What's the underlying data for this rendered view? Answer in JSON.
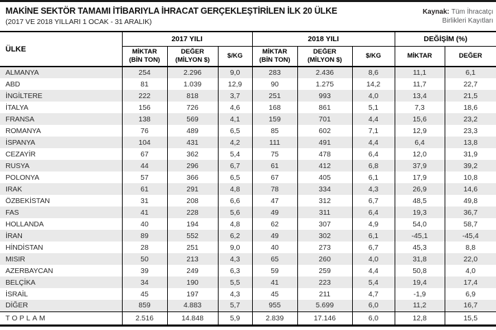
{
  "chart_data": {
    "type": "table",
    "title": "MAKİNE SEKTÖR TAMAMI İTİBARIYLA İHRACAT GERÇEKLEŞTİRİLEN İLK 20 ÜLKE",
    "subtitle": "(2017 VE 2018 YILLARI 1 OCAK - 31 ARALIK)",
    "source_label": "Kaynak:",
    "source_line1": "Tüm İhracatçı",
    "source_line2": "Birlikleri Kayıtları",
    "header": {
      "country_label": "ÜLKE",
      "group_2017": "2017 YILI",
      "group_2018": "2018 YILI",
      "group_change": "DEĞİŞİM (%)",
      "miktar_line1": "MİKTAR",
      "miktar_line2": "(BİN TON)",
      "deger_line1": "DEĞER",
      "deger_line2": "(MİLYON $)",
      "per_kg": "$/KG",
      "change_miktar": "MİKTAR",
      "change_deger": "DEĞER"
    },
    "rows": [
      {
        "country": "ALMANYA",
        "values": [
          "254",
          "2.296",
          "9,0",
          "283",
          "2.436",
          "8,6",
          "11,1",
          "6,1"
        ]
      },
      {
        "country": "ABD",
        "values": [
          "81",
          "1.039",
          "12,9",
          "90",
          "1.275",
          "14,2",
          "11,7",
          "22,7"
        ]
      },
      {
        "country": "İNGİLTERE",
        "values": [
          "222",
          "818",
          "3,7",
          "251",
          "993",
          "4,0",
          "13,4",
          "21,5"
        ]
      },
      {
        "country": "İTALYA",
        "values": [
          "156",
          "726",
          "4,6",
          "168",
          "861",
          "5,1",
          "7,3",
          "18,6"
        ]
      },
      {
        "country": "FRANSA",
        "values": [
          "138",
          "569",
          "4,1",
          "159",
          "701",
          "4,4",
          "15,6",
          "23,2"
        ]
      },
      {
        "country": "ROMANYA",
        "values": [
          "76",
          "489",
          "6,5",
          "85",
          "602",
          "7,1",
          "12,9",
          "23,3"
        ]
      },
      {
        "country": "İSPANYA",
        "values": [
          "104",
          "431",
          "4,2",
          "111",
          "491",
          "4,4",
          "6,4",
          "13,8"
        ]
      },
      {
        "country": "CEZAYİR",
        "values": [
          "67",
          "362",
          "5,4",
          "75",
          "478",
          "6,4",
          "12,0",
          "31,9"
        ]
      },
      {
        "country": "RUSYA",
        "values": [
          "44",
          "296",
          "6,7",
          "61",
          "412",
          "6,8",
          "37,9",
          "39,2"
        ]
      },
      {
        "country": "POLONYA",
        "values": [
          "57",
          "366",
          "6,5",
          "67",
          "405",
          "6,1",
          "17,9",
          "10,8"
        ]
      },
      {
        "country": "IRAK",
        "values": [
          "61",
          "291",
          "4,8",
          "78",
          "334",
          "4,3",
          "26,9",
          "14,6"
        ]
      },
      {
        "country": "ÖZBEKİSTAN",
        "values": [
          "31",
          "208",
          "6,6",
          "47",
          "312",
          "6,7",
          "48,5",
          "49,8"
        ]
      },
      {
        "country": "FAS",
        "values": [
          "41",
          "228",
          "5,6",
          "49",
          "311",
          "6,4",
          "19,3",
          "36,7"
        ]
      },
      {
        "country": "HOLLANDA",
        "values": [
          "40",
          "194",
          "4,8",
          "62",
          "307",
          "4,9",
          "54,0",
          "58,7"
        ]
      },
      {
        "country": "İRAN",
        "values": [
          "89",
          "552",
          "6,2",
          "49",
          "302",
          "6,1",
          "-45,1",
          "-45,4"
        ]
      },
      {
        "country": "HİNDİSTAN",
        "values": [
          "28",
          "251",
          "9,0",
          "40",
          "273",
          "6,7",
          "45,3",
          "8,8"
        ]
      },
      {
        "country": "MISIR",
        "values": [
          "50",
          "213",
          "4,3",
          "65",
          "260",
          "4,0",
          "31,8",
          "22,0"
        ]
      },
      {
        "country": "AZERBAYCAN",
        "values": [
          "39",
          "249",
          "6,3",
          "59",
          "259",
          "4,4",
          "50,8",
          "4,0"
        ]
      },
      {
        "country": "BELÇİKA",
        "values": [
          "34",
          "190",
          "5,5",
          "41",
          "223",
          "5,4",
          "19,4",
          "17,4"
        ]
      },
      {
        "country": "İSRAİL",
        "values": [
          "45",
          "197",
          "4,3",
          "45",
          "211",
          "4,7",
          "-1,9",
          "6,9"
        ]
      },
      {
        "country": "DİĞER",
        "values": [
          "859",
          "4.883",
          "5,7",
          "955",
          "5.699",
          "6,0",
          "11,2",
          "16,7"
        ]
      }
    ],
    "total_row": {
      "country": "TOPLAM",
      "values": [
        "2.516",
        "14.848",
        "5,9",
        "2.839",
        "17.146",
        "6,0",
        "12,8",
        "15,5"
      ]
    }
  }
}
